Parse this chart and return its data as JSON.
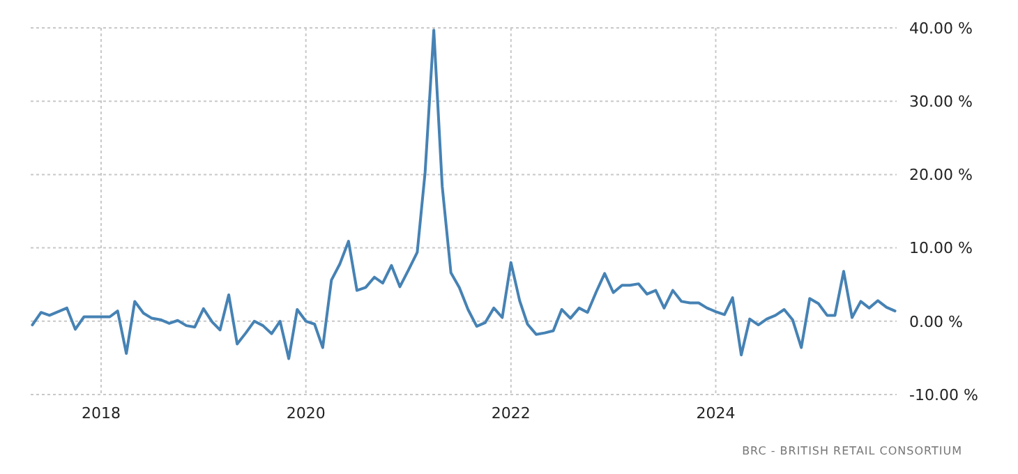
{
  "chart_data": {
    "type": "line",
    "x": [
      "2017-05",
      "2017-06",
      "2017-07",
      "2017-08",
      "2017-09",
      "2017-10",
      "2017-11",
      "2017-12",
      "2018-01",
      "2018-02",
      "2018-03",
      "2018-04",
      "2018-05",
      "2018-06",
      "2018-07",
      "2018-08",
      "2018-09",
      "2018-10",
      "2018-11",
      "2018-12",
      "2019-01",
      "2019-02",
      "2019-03",
      "2019-04",
      "2019-05",
      "2019-06",
      "2019-07",
      "2019-08",
      "2019-09",
      "2019-10",
      "2019-11",
      "2019-12",
      "2020-01",
      "2020-02",
      "2020-03",
      "2020-04",
      "2020-05",
      "2020-06",
      "2020-07",
      "2020-08",
      "2020-09",
      "2020-10",
      "2020-11",
      "2020-12",
      "2021-01",
      "2021-02",
      "2021-03",
      "2021-04",
      "2021-05",
      "2021-06",
      "2021-07",
      "2021-08",
      "2021-09",
      "2021-10",
      "2021-11",
      "2021-12",
      "2022-01",
      "2022-02",
      "2022-03",
      "2022-04",
      "2022-05",
      "2022-06",
      "2022-07",
      "2022-08",
      "2022-09",
      "2022-10",
      "2022-11",
      "2022-12",
      "2023-01",
      "2023-02",
      "2023-03",
      "2023-04",
      "2023-05",
      "2023-06",
      "2023-07",
      "2023-08",
      "2023-09",
      "2023-10",
      "2023-11",
      "2023-12",
      "2024-01",
      "2024-02",
      "2024-03",
      "2024-04",
      "2024-05",
      "2024-06",
      "2024-07",
      "2024-08",
      "2024-09",
      "2024-10",
      "2024-11",
      "2024-12",
      "2025-01",
      "2025-02",
      "2025-03",
      "2025-04",
      "2025-05",
      "2025-06",
      "2025-07",
      "2025-08",
      "2025-09",
      "2025-10"
    ],
    "series": [
      {
        "color": "#4682b4",
        "values": [
          -0.5,
          1.2,
          0.8,
          1.3,
          1.8,
          -1.1,
          0.6,
          0.6,
          0.6,
          0.6,
          1.4,
          -4.4,
          2.7,
          1.1,
          0.4,
          0.2,
          -0.3,
          0.1,
          -0.6,
          -0.8,
          1.7,
          -0.1,
          -1.2,
          3.6,
          -3.1,
          -1.6,
          0,
          -0.6,
          -1.7,
          0,
          -5.1,
          1.6,
          0,
          -0.4,
          -3.6,
          5.6,
          7.8,
          10.9,
          4.2,
          4.6,
          6.0,
          5.2,
          7.6,
          4.7,
          7.0,
          9.4,
          20.3,
          39.7,
          18.4,
          6.6,
          4.6,
          1.6,
          -0.7,
          -0.2,
          1.8,
          0.5,
          8.0,
          2.8,
          -0.4,
          -1.8,
          -1.6,
          -1.3,
          1.6,
          0.4,
          1.8,
          1.2,
          4.0,
          6.5,
          3.9,
          4.9,
          4.9,
          5.1,
          3.7,
          4.2,
          1.8,
          4.2,
          2.7,
          2.5,
          2.5,
          1.8,
          1.3,
          0.9,
          3.2,
          -4.6,
          0.3,
          -0.5,
          0.3,
          0.8,
          1.6,
          0.2,
          -3.6,
          3.1,
          2.4,
          0.8,
          0.8,
          6.8,
          0.5,
          2.7,
          1.8,
          2.8,
          1.9,
          1.4
        ]
      }
    ],
    "xlim": [
      "2017-04-25",
      "2025-10-07"
    ],
    "xticks": [
      {
        "value": "2018-01",
        "label": "2018"
      },
      {
        "value": "2020-01",
        "label": "2020"
      },
      {
        "value": "2022-01",
        "label": "2022"
      },
      {
        "value": "2024-01",
        "label": "2024"
      }
    ],
    "ylim": [
      -10,
      40
    ],
    "yticks": [
      {
        "value": -10,
        "label": "-10.00 %"
      },
      {
        "value": 0,
        "label": "0.00 %"
      },
      {
        "value": 10,
        "label": "10.00 %"
      },
      {
        "value": 20,
        "label": "20.00 %"
      },
      {
        "value": 30,
        "label": "30.00 %"
      },
      {
        "value": 40,
        "label": "40.00 %"
      }
    ],
    "grid": true,
    "marker": "none",
    "line_style": "solid",
    "annotations": [
      "BRC - BRITISH RETAIL CONSORTIUM"
    ]
  }
}
